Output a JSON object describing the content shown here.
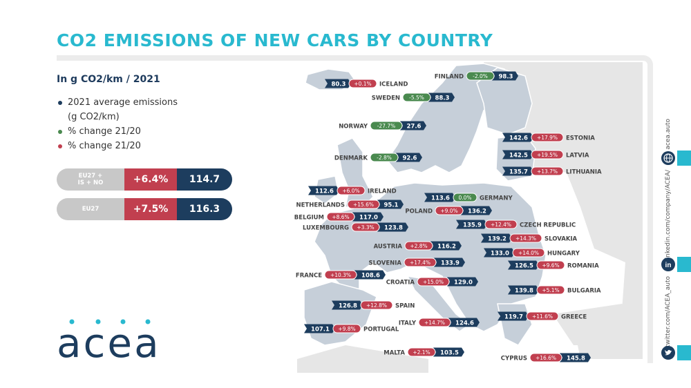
{
  "title": "CO2 EMISSIONS OF NEW CARS BY COUNTRY",
  "subtitle": "In g CO2/km / 2021",
  "legend": [
    {
      "text": "2021 average emissions",
      "text2": "(g CO2/km)",
      "color": "#1d3d5e"
    },
    {
      "text": "% change 21/20",
      "color": "#4a8a4f"
    },
    {
      "text": "% change 21/20",
      "color": "#c13f4f"
    }
  ],
  "summary": [
    {
      "label_line1": "EU27 +",
      "label_line2": "IS + NO",
      "change": "+6.4%",
      "value": "114.7"
    },
    {
      "label_line1": "EU27",
      "label_line2": "",
      "change": "+7.5%",
      "value": "116.3"
    }
  ],
  "logo_text": "acea",
  "social": {
    "website": "acea.auto",
    "linkedin": "linkedin.com/company/ACEA/",
    "twitter": "twitter.com/ACEA_auto"
  },
  "colors": {
    "accent": "#29b9cf",
    "navy": "#1d3d5e",
    "green": "#4a8a4f",
    "red": "#c13f4f",
    "land": "#c6cfd9",
    "land_dark": "#aab6c4",
    "other_land": "#e6e6e6"
  },
  "chart_data": {
    "type": "table",
    "title": "CO2 EMISSIONS OF NEW CARS BY COUNTRY",
    "unit": "In g CO2/km / 2021",
    "columns": [
      "country",
      "emissions_2021",
      "change_21_20"
    ],
    "rows": [
      {
        "country": "ICELAND",
        "value": "80.3",
        "change": "+0.1%",
        "dir": "up"
      },
      {
        "country": "FINLAND",
        "value": "98.3",
        "change": "-2.0%",
        "dir": "down"
      },
      {
        "country": "SWEDEN",
        "value": "88.3",
        "change": "-5.5%",
        "dir": "down"
      },
      {
        "country": "NORWAY",
        "value": "27.6",
        "change": "-27.7%",
        "dir": "down"
      },
      {
        "country": "DENMARK",
        "value": "92.6",
        "change": "-2.8%",
        "dir": "down"
      },
      {
        "country": "ESTONIA",
        "value": "142.6",
        "change": "+17.9%",
        "dir": "up"
      },
      {
        "country": "LATVIA",
        "value": "142.5",
        "change": "+19.5%",
        "dir": "up"
      },
      {
        "country": "LITHUANIA",
        "value": "135.7",
        "change": "+13.7%",
        "dir": "up"
      },
      {
        "country": "IRELAND",
        "value": "112.6",
        "change": "+6.0%",
        "dir": "up"
      },
      {
        "country": "GERMANY",
        "value": "113.6",
        "change": "0.0%",
        "dir": "down"
      },
      {
        "country": "NETHERLANDS",
        "value": "95.1",
        "change": "+15.6%",
        "dir": "up"
      },
      {
        "country": "POLAND",
        "value": "136.2",
        "change": "+9.0%",
        "dir": "up"
      },
      {
        "country": "BELGIUM",
        "value": "117.0",
        "change": "+8.6%",
        "dir": "up"
      },
      {
        "country": "LUXEMBOURG",
        "value": "123.8",
        "change": "+3.3%",
        "dir": "up"
      },
      {
        "country": "CZECH REPUBLIC",
        "value": "135.9",
        "change": "+12.4%",
        "dir": "up"
      },
      {
        "country": "SLOVAKIA",
        "value": "139.2",
        "change": "+14.3%",
        "dir": "up"
      },
      {
        "country": "AUSTRIA",
        "value": "116.2",
        "change": "+2.8%",
        "dir": "up"
      },
      {
        "country": "HUNGARY",
        "value": "133.0",
        "change": "+14.0%",
        "dir": "up"
      },
      {
        "country": "SLOVENIA",
        "value": "133.9",
        "change": "+17.4%",
        "dir": "up"
      },
      {
        "country": "ROMANIA",
        "value": "126.5",
        "change": "+9.6%",
        "dir": "up"
      },
      {
        "country": "FRANCE",
        "value": "108.6",
        "change": "+10.3%",
        "dir": "up"
      },
      {
        "country": "CROATIA",
        "value": "129.0",
        "change": "+15.0%",
        "dir": "up"
      },
      {
        "country": "BULGARIA",
        "value": "139.8",
        "change": "+5.1%",
        "dir": "up"
      },
      {
        "country": "SPAIN",
        "value": "126.8",
        "change": "+12.8%",
        "dir": "up"
      },
      {
        "country": "GREECE",
        "value": "119.7",
        "change": "+11.6%",
        "dir": "up"
      },
      {
        "country": "ITALY",
        "value": "124.6",
        "change": "+14.7%",
        "dir": "up"
      },
      {
        "country": "PORTUGAL",
        "value": "107.1",
        "change": "+9.8%",
        "dir": "up"
      },
      {
        "country": "MALTA",
        "value": "103.5",
        "change": "+2.1%",
        "dir": "up"
      },
      {
        "country": "CYPRUS",
        "value": "145.8",
        "change": "+16.6%",
        "dir": "up"
      }
    ]
  }
}
